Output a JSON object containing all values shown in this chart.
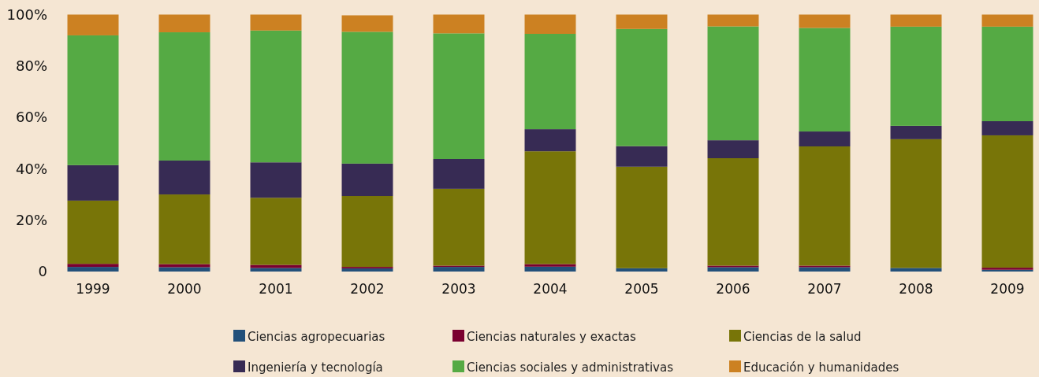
{
  "chart_data": {
    "type": "bar",
    "stacked": true,
    "categories": [
      "1999",
      "2000",
      "2001",
      "2002",
      "2003",
      "2004",
      "2005",
      "2006",
      "2007",
      "2008",
      "2009"
    ],
    "series": [
      {
        "name": "Ciencias agropecuarias",
        "color": "#22507a",
        "values": [
          1.8,
          1.7,
          1.4,
          1.2,
          1.8,
          1.9,
          1.3,
          1.7,
          1.7,
          1.4,
          0.7
        ]
      },
      {
        "name": "Ciencias naturales y exactas",
        "color": "#7a0030",
        "values": [
          1.2,
          1.2,
          1.2,
          0.6,
          0.5,
          1.0,
          0,
          0.6,
          0.6,
          0,
          0.8
        ]
      },
      {
        "name": "Ciencias de la salud",
        "color": "#787508",
        "values": [
          24.6,
          27.1,
          26.1,
          27.6,
          29.9,
          43.9,
          39.5,
          41.8,
          46.4,
          50.1,
          51.5
        ]
      },
      {
        "name": "Ingeniería y tecnología",
        "color": "#372b54",
        "values": [
          13.8,
          13.2,
          13.8,
          12.6,
          11.6,
          8.6,
          8.0,
          7.0,
          5.8,
          5.2,
          5.5
        ]
      },
      {
        "name": "Ciencias sociales y administrativas",
        "color": "#55aa44",
        "values": [
          50.5,
          49.9,
          51.3,
          51.3,
          48.9,
          37.1,
          45.6,
          44.3,
          40.3,
          38.6,
          36.8
        ]
      },
      {
        "name": "Educación y humanidades",
        "color": "#cc8122",
        "values": [
          8.1,
          6.9,
          6.2,
          6.4,
          7.3,
          7.5,
          5.6,
          4.6,
          5.2,
          4.7,
          4.7
        ]
      }
    ],
    "ylim": [
      0,
      100
    ],
    "yticks": [
      {
        "value": 0,
        "label": "0"
      },
      {
        "value": 20,
        "label": "20%"
      },
      {
        "value": 40,
        "label": "40%"
      },
      {
        "value": 60,
        "label": "60%"
      },
      {
        "value": 80,
        "label": "80%"
      },
      {
        "value": 100,
        "label": "100%"
      }
    ],
    "grid": false,
    "legend": "bottom"
  }
}
